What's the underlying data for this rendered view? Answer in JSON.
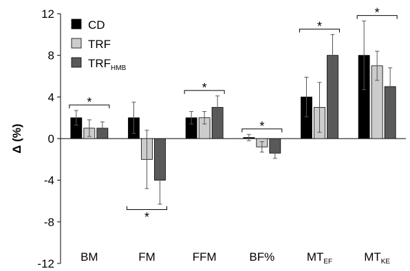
{
  "chart_data": {
    "type": "bar",
    "ylabel": "Δ (%)",
    "ylim": [
      -12,
      12
    ],
    "yticks": [
      12,
      8,
      4,
      0,
      -4,
      -8,
      -12
    ],
    "categories": [
      {
        "main": "BM",
        "sub": ""
      },
      {
        "main": "FM",
        "sub": ""
      },
      {
        "main": "FFM",
        "sub": ""
      },
      {
        "main": "BF%",
        "sub": ""
      },
      {
        "main": "MT",
        "sub": "EF"
      },
      {
        "main": "MT",
        "sub": "KE"
      }
    ],
    "series": [
      {
        "name": "CD",
        "name_sub": "",
        "color": "#000000",
        "values": [
          2,
          2,
          2,
          0.1,
          4,
          8
        ],
        "errors": [
          0.7,
          1.5,
          0.6,
          0.3,
          1.9,
          3.3
        ]
      },
      {
        "name": "TRF",
        "name_sub": "",
        "color": "#cccccc",
        "values": [
          1,
          -2,
          2,
          -0.8,
          3,
          7
        ],
        "errors": [
          0.8,
          2.8,
          0.6,
          0.5,
          2.4,
          1.4
        ]
      },
      {
        "name": "TRF",
        "name_sub": "HMB",
        "color": "#5a5a5a",
        "values": [
          1,
          -4,
          3,
          -1.4,
          8,
          5
        ],
        "errors": [
          0.6,
          2.3,
          1.1,
          0.5,
          2.0,
          1.8
        ]
      }
    ],
    "significance": [
      {
        "category_index": 0,
        "label": "*",
        "position": "above"
      },
      {
        "category_index": 1,
        "label": "*",
        "position": "below"
      },
      {
        "category_index": 2,
        "label": "*",
        "position": "above"
      },
      {
        "category_index": 3,
        "label": "*",
        "position": "above"
      },
      {
        "category_index": 4,
        "label": "*",
        "position": "above"
      },
      {
        "category_index": 5,
        "label": "*",
        "position": "above"
      }
    ],
    "legend_position": "top-left",
    "grid": false
  }
}
